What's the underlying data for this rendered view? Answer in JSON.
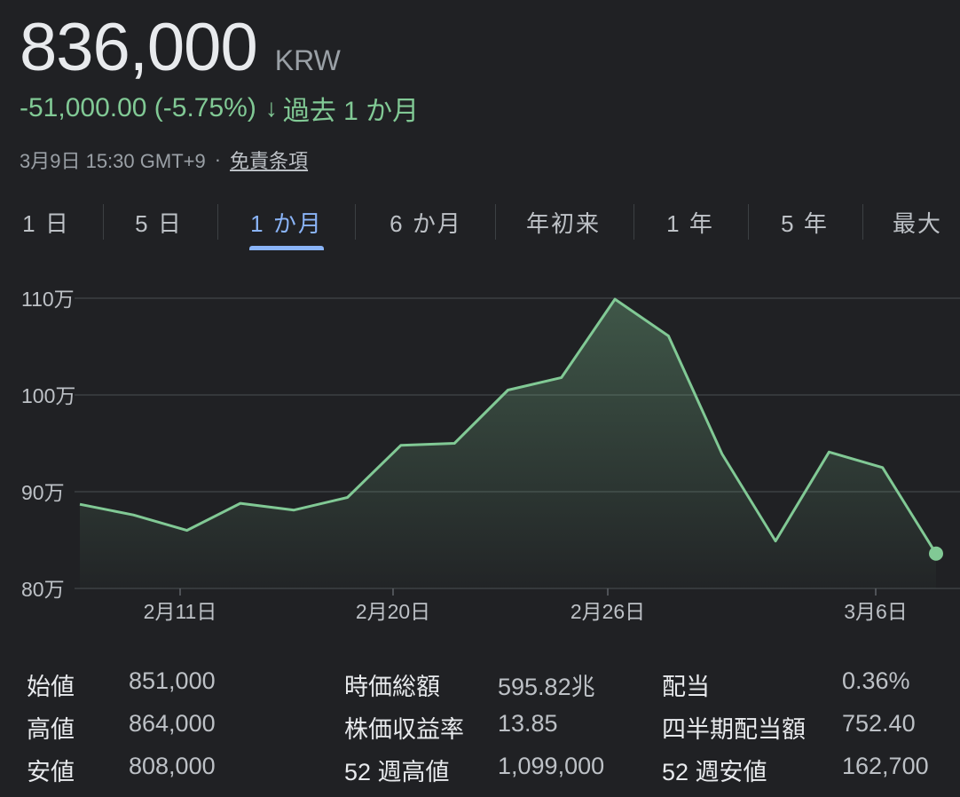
{
  "quote": {
    "price": "836,000",
    "currency": "KRW",
    "change": "-51,000.00 (-5.75%)",
    "change_arrow": "↓",
    "period_label": "過去 1 か月",
    "timestamp": "3月9日 15:30 GMT+9",
    "separator": "·",
    "disclaimer": "免責条項",
    "accent_color": "#81c995"
  },
  "tabs": [
    {
      "label": "1 日",
      "active": false
    },
    {
      "label": "5 日",
      "active": false
    },
    {
      "label": "1 か月",
      "active": true
    },
    {
      "label": "6 か月",
      "active": false
    },
    {
      "label": "年初来",
      "active": false
    },
    {
      "label": "1 年",
      "active": false
    },
    {
      "label": "5 年",
      "active": false
    },
    {
      "label": "最大",
      "active": false
    }
  ],
  "chart_data": {
    "type": "area",
    "x_ticks": [
      "2月11日",
      "2月20日",
      "2月26日",
      "3月6日"
    ],
    "y_ticks": [
      "110万",
      "100万",
      "90万",
      "80万"
    ],
    "y_tick_values": [
      1100000,
      1000000,
      900000,
      800000
    ],
    "ylim": [
      800000,
      1100000
    ],
    "grid": true,
    "series": [
      {
        "values": [
          887000,
          876000,
          860000,
          888000,
          881000,
          894000,
          948000,
          950000,
          1005000,
          1018000,
          1099000,
          1061000,
          939000,
          849000,
          941000,
          925000,
          836000
        ]
      }
    ],
    "line_color": "#81c995"
  },
  "stats": [
    {
      "label": "始値",
      "value": "851,000"
    },
    {
      "label": "高値",
      "value": "864,000"
    },
    {
      "label": "安値",
      "value": "808,000"
    },
    {
      "label": "時価総額",
      "value": "595.82兆"
    },
    {
      "label": "株価収益率",
      "value": "13.85"
    },
    {
      "label": "52 週高値",
      "value": "1,099,000"
    },
    {
      "label": "配当",
      "value": "0.36%"
    },
    {
      "label": "四半期配当額",
      "value": "752.40"
    },
    {
      "label": "52 週安値",
      "value": "162,700"
    }
  ]
}
